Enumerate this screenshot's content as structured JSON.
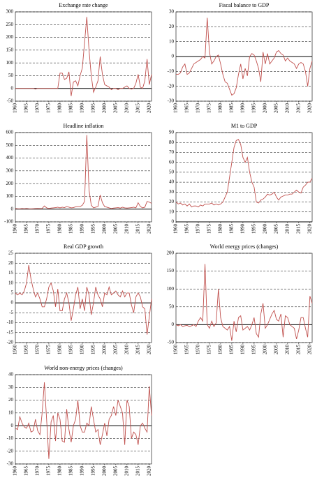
{
  "chart_data": [
    {
      "type": "line",
      "title": "Exchange rate change",
      "color": "#c0504d",
      "grid": true,
      "x": [
        1960,
        1961,
        1962,
        1963,
        1964,
        1965,
        1966,
        1967,
        1968,
        1969,
        1970,
        1971,
        1972,
        1973,
        1974,
        1975,
        1976,
        1977,
        1978,
        1979,
        1980,
        1981,
        1982,
        1983,
        1984,
        1985,
        1986,
        1987,
        1988,
        1989,
        1990,
        1991,
        1992,
        1993,
        1994,
        1995,
        1996,
        1997,
        1998,
        1999,
        2000,
        2001,
        2002,
        2003,
        2004,
        2005,
        2006,
        2007,
        2008,
        2009,
        2010,
        2011,
        2012,
        2013,
        2014,
        2015,
        2016,
        2017,
        2018,
        2019,
        2020,
        2021
      ],
      "values": [
        0,
        0,
        0,
        0,
        0,
        0,
        0,
        0,
        0,
        -3,
        0,
        0,
        0,
        0,
        0,
        0,
        0,
        0,
        0,
        0,
        60,
        60,
        35,
        40,
        65,
        -30,
        25,
        30,
        10,
        50,
        80,
        180,
        280,
        150,
        50,
        -15,
        5,
        30,
        125,
        55,
        15,
        10,
        5,
        -5,
        0,
        0,
        -5,
        0,
        0,
        5,
        10,
        0,
        -3,
        0,
        20,
        55,
        5,
        0,
        30,
        115,
        15,
        55
      ],
      "xlim": [
        1960,
        2021
      ],
      "xticks": [
        1960,
        1965,
        1970,
        1975,
        1980,
        1985,
        1990,
        1995,
        2000,
        2005,
        2010,
        2015,
        2020
      ],
      "ylim": [
        -50,
        300
      ],
      "yticks": [
        -50,
        0,
        50,
        100,
        150,
        200,
        250,
        300
      ]
    },
    {
      "type": "line",
      "title": "Fiscal balance to GDP",
      "color": "#c0504d",
      "grid": true,
      "x": [
        1960,
        1961,
        1962,
        1963,
        1964,
        1965,
        1966,
        1967,
        1968,
        1969,
        1970,
        1971,
        1972,
        1973,
        1974,
        1975,
        1976,
        1977,
        1978,
        1979,
        1980,
        1981,
        1982,
        1983,
        1984,
        1985,
        1986,
        1987,
        1988,
        1989,
        1990,
        1991,
        1992,
        1993,
        1994,
        1995,
        1996,
        1997,
        1998,
        1999,
        2000,
        2001,
        2002,
        2003,
        2004,
        2005,
        2006,
        2007,
        2008,
        2009,
        2010,
        2011,
        2012,
        2013,
        2014,
        2015,
        2016,
        2017,
        2018,
        2019,
        2020,
        2021
      ],
      "values": [
        -12,
        -12,
        -11,
        -7,
        -5,
        -12,
        -11,
        -8,
        -5,
        -4,
        -3,
        -2,
        0,
        -1,
        26,
        3,
        -5,
        -3,
        0,
        1,
        -5,
        -12,
        -17,
        -18,
        -22,
        -26,
        -25,
        -21,
        -12,
        -5,
        -15,
        -8,
        -13,
        0,
        2,
        1,
        -3,
        -8,
        -17,
        3,
        -5,
        2,
        -5,
        -3,
        -1,
        3,
        4,
        2,
        1,
        -3,
        -1,
        -3,
        -4,
        -5,
        -8,
        -5,
        -4,
        -5,
        -10,
        -20,
        -8,
        -3
      ],
      "xlim": [
        1960,
        2021
      ],
      "xticks": [
        1960,
        1965,
        1970,
        1975,
        1980,
        1985,
        1990,
        1995,
        2000,
        2005,
        2010,
        2015,
        2020
      ],
      "ylim": [
        -30,
        30
      ],
      "yticks": [
        -30,
        -20,
        -10,
        0,
        10,
        20,
        30
      ]
    },
    {
      "type": "line",
      "title": "Headline inflation",
      "color": "#c0504d",
      "grid": true,
      "x": [
        1960,
        1961,
        1962,
        1963,
        1964,
        1965,
        1966,
        1967,
        1968,
        1969,
        1970,
        1971,
        1972,
        1973,
        1974,
        1975,
        1976,
        1977,
        1978,
        1979,
        1980,
        1981,
        1982,
        1983,
        1984,
        1985,
        1986,
        1987,
        1988,
        1989,
        1990,
        1991,
        1992,
        1993,
        1994,
        1995,
        1996,
        1997,
        1998,
        1999,
        2000,
        2001,
        2002,
        2003,
        2004,
        2005,
        2006,
        2007,
        2008,
        2009,
        2010,
        2011,
        2012,
        2013,
        2014,
        2015,
        2016,
        2017,
        2018,
        2019,
        2020,
        2021
      ],
      "values": [
        5,
        3,
        2,
        4,
        3,
        5,
        3,
        2,
        3,
        4,
        5,
        4,
        5,
        25,
        10,
        5,
        8,
        10,
        12,
        15,
        10,
        15,
        12,
        20,
        15,
        10,
        12,
        18,
        20,
        20,
        30,
        60,
        580,
        150,
        30,
        10,
        15,
        20,
        110,
        50,
        20,
        15,
        10,
        5,
        8,
        10,
        12,
        8,
        15,
        10,
        8,
        10,
        12,
        15,
        10,
        50,
        20,
        10,
        15,
        60,
        55,
        45
      ],
      "xlim": [
        1960,
        2021
      ],
      "xticks": [
        1960,
        1965,
        1970,
        1975,
        1980,
        1985,
        1990,
        1995,
        2000,
        2005,
        2010,
        2015,
        2020
      ],
      "ylim": [
        -100,
        600
      ],
      "yticks": [
        -100,
        0,
        100,
        200,
        300,
        400,
        500,
        600
      ]
    },
    {
      "type": "line",
      "title": "M1 to GDP",
      "color": "#c0504d",
      "grid": true,
      "x": [
        1960,
        1961,
        1962,
        1963,
        1964,
        1965,
        1966,
        1967,
        1968,
        1969,
        1970,
        1971,
        1972,
        1973,
        1974,
        1975,
        1976,
        1977,
        1978,
        1979,
        1980,
        1981,
        1982,
        1983,
        1984,
        1985,
        1986,
        1987,
        1988,
        1989,
        1990,
        1991,
        1992,
        1993,
        1994,
        1995,
        1996,
        1997,
        1998,
        1999,
        2000,
        2001,
        2002,
        2003,
        2004,
        2005,
        2006,
        2007,
        2008,
        2009,
        2010,
        2011,
        2012,
        2013,
        2014,
        2015,
        2016,
        2017,
        2018,
        2019,
        2020,
        2021
      ],
      "values": [
        20,
        18,
        19,
        17,
        18,
        16,
        18,
        15,
        16,
        16,
        15,
        17,
        16,
        18,
        18,
        18,
        19,
        17,
        18,
        17,
        18,
        20,
        25,
        30,
        45,
        60,
        75,
        82,
        83,
        78,
        65,
        60,
        65,
        50,
        40,
        35,
        20,
        19,
        22,
        23,
        25,
        28,
        27,
        28,
        30,
        25,
        22,
        25,
        26,
        27,
        27,
        28,
        28,
        30,
        32,
        30,
        29,
        35,
        37,
        40,
        40,
        44
      ],
      "xlim": [
        1960,
        2021
      ],
      "xticks": [
        1960,
        1965,
        1970,
        1975,
        1980,
        1985,
        1990,
        1995,
        2000,
        2005,
        2010,
        2015,
        2020
      ],
      "ylim": [
        0,
        90
      ],
      "yticks": [
        0,
        10,
        20,
        30,
        40,
        50,
        60,
        70,
        80,
        90
      ]
    },
    {
      "type": "line",
      "title": "Real GDP growth",
      "color": "#c0504d",
      "grid": true,
      "x": [
        1960,
        1961,
        1962,
        1963,
        1964,
        1965,
        1966,
        1967,
        1968,
        1969,
        1970,
        1971,
        1972,
        1973,
        1974,
        1975,
        1976,
        1977,
        1978,
        1979,
        1980,
        1981,
        1982,
        1983,
        1984,
        1985,
        1986,
        1987,
        1988,
        1989,
        1990,
        1991,
        1992,
        1993,
        1994,
        1995,
        1996,
        1997,
        1998,
        1999,
        2000,
        2001,
        2002,
        2003,
        2004,
        2005,
        2006,
        2007,
        2008,
        2009,
        2010,
        2011,
        2012,
        2013,
        2014,
        2015,
        2016,
        2017,
        2018,
        2019,
        2020,
        2021
      ],
      "values": [
        5,
        4,
        5,
        4,
        6,
        10,
        19,
        12,
        7,
        3,
        5,
        2,
        -2,
        -2,
        2,
        8,
        10,
        6,
        -2,
        7,
        -4,
        -4,
        2,
        5,
        0,
        -9,
        -3,
        4,
        8,
        -3,
        2,
        -4,
        8,
        4,
        -6,
        0,
        8,
        4,
        2,
        -2,
        5,
        4,
        8,
        4,
        5,
        6,
        4,
        3,
        6,
        3,
        5,
        5,
        -1,
        -5,
        3,
        5,
        3,
        -2,
        -3,
        -16,
        -7,
        2
      ],
      "xlim": [
        1960,
        2021
      ],
      "xticks": [
        1960,
        1965,
        1970,
        1975,
        1980,
        1985,
        1990,
        1995,
        2000,
        2005,
        2010,
        2015,
        2020
      ],
      "ylim": [
        -20,
        25
      ],
      "yticks": [
        -20,
        -15,
        -10,
        -5,
        0,
        5,
        10,
        15,
        20,
        25
      ]
    },
    {
      "type": "line",
      "title": "World energy prices (changes)",
      "color": "#c0504d",
      "grid": true,
      "x": [
        1960,
        1961,
        1962,
        1963,
        1964,
        1965,
        1966,
        1967,
        1968,
        1969,
        1970,
        1971,
        1972,
        1973,
        1974,
        1975,
        1976,
        1977,
        1978,
        1979,
        1980,
        1981,
        1982,
        1983,
        1984,
        1985,
        1986,
        1987,
        1988,
        1989,
        1990,
        1991,
        1992,
        1993,
        1994,
        1995,
        1996,
        1997,
        1998,
        1999,
        2000,
        2001,
        2002,
        2003,
        2004,
        2005,
        2006,
        2007,
        2008,
        2009,
        2010,
        2011,
        2012,
        2013,
        2014,
        2015,
        2016,
        2017,
        2018,
        2019,
        2020,
        2021
      ],
      "values": [
        0,
        -3,
        0,
        -5,
        -3,
        -2,
        -5,
        -3,
        0,
        -5,
        10,
        20,
        10,
        170,
        0,
        -10,
        10,
        -5,
        5,
        100,
        20,
        -5,
        -10,
        -15,
        -5,
        -45,
        10,
        -20,
        20,
        25,
        -15,
        -10,
        -5,
        -15,
        0,
        20,
        -25,
        -35,
        30,
        60,
        -10,
        0,
        15,
        30,
        40,
        15,
        10,
        30,
        -35,
        25,
        20,
        0,
        -5,
        -10,
        -40,
        -15,
        20,
        20,
        -10,
        -35,
        80,
        60
      ],
      "xlim": [
        1960,
        2021
      ],
      "xticks": [
        1960,
        1965,
        1970,
        1975,
        1980,
        1985,
        1990,
        1995,
        2000,
        2005,
        2010,
        2015,
        2020
      ],
      "ylim": [
        -50,
        200
      ],
      "yticks": [
        -50,
        0,
        50,
        100,
        150,
        200
      ]
    },
    {
      "type": "line",
      "title": "World non-energy prices (changes)",
      "color": "#c0504d",
      "grid": true,
      "x": [
        1960,
        1961,
        1962,
        1963,
        1964,
        1965,
        1966,
        1967,
        1968,
        1969,
        1970,
        1971,
        1972,
        1973,
        1974,
        1975,
        1976,
        1977,
        1978,
        1979,
        1980,
        1981,
        1982,
        1983,
        1984,
        1985,
        1986,
        1987,
        1988,
        1989,
        1990,
        1991,
        1992,
        1993,
        1994,
        1995,
        1996,
        1997,
        1998,
        1999,
        2000,
        2001,
        2002,
        2003,
        2004,
        2005,
        2006,
        2007,
        2008,
        2009,
        2010,
        2011,
        2012,
        2013,
        2014,
        2015,
        2016,
        2017,
        2018,
        2019,
        2020,
        2021
      ],
      "values": [
        -2,
        -3,
        7,
        2,
        -1,
        -2,
        2,
        -5,
        -4,
        5,
        -4,
        -7,
        10,
        34,
        5,
        -26,
        3,
        8,
        -12,
        10,
        5,
        -12,
        -13,
        13,
        -3,
        -13,
        0,
        5,
        20,
        0,
        -5,
        -5,
        2,
        0,
        15,
        5,
        -5,
        -3,
        -15,
        -7,
        2,
        -8,
        5,
        8,
        15,
        8,
        20,
        15,
        10,
        -15,
        20,
        15,
        -10,
        -5,
        -7,
        -15,
        0,
        2,
        -2,
        -5,
        31,
        8
      ],
      "xlim": [
        1960,
        2021
      ],
      "xticks": [
        1960,
        1965,
        1970,
        1975,
        1980,
        1985,
        1990,
        1995,
        2000,
        2005,
        2010,
        2015,
        2020
      ],
      "ylim": [
        -30,
        40
      ],
      "yticks": [
        -30,
        -20,
        -10,
        0,
        10,
        20,
        30,
        40
      ]
    }
  ]
}
